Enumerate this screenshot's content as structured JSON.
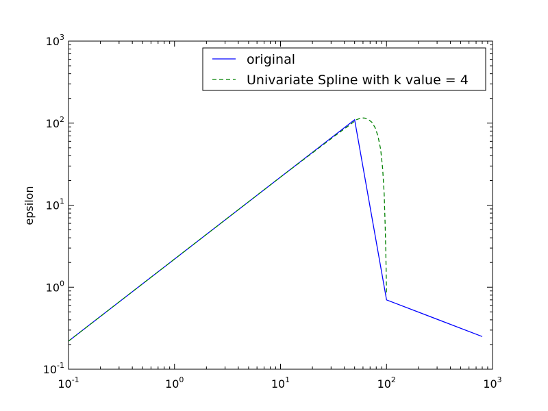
{
  "chart_data": {
    "type": "line",
    "title": "",
    "xlabel": "",
    "ylabel": "epsilon",
    "xscale": "log",
    "yscale": "log",
    "xlim": [
      0.1,
      1000
    ],
    "ylim": [
      0.1,
      1000
    ],
    "grid": false,
    "legend_position": "top-right",
    "x_ticks": [
      {
        "base": "10",
        "exp": "-1",
        "value": 0.1
      },
      {
        "base": "10",
        "exp": "0",
        "value": 1
      },
      {
        "base": "10",
        "exp": "1",
        "value": 10
      },
      {
        "base": "10",
        "exp": "2",
        "value": 100
      },
      {
        "base": "10",
        "exp": "3",
        "value": 1000
      }
    ],
    "y_ticks": [
      {
        "base": "10",
        "exp": "-1",
        "value": 0.1
      },
      {
        "base": "10",
        "exp": "0",
        "value": 1
      },
      {
        "base": "10",
        "exp": "1",
        "value": 10
      },
      {
        "base": "10",
        "exp": "2",
        "value": 100
      },
      {
        "base": "10",
        "exp": "3",
        "value": 1000
      }
    ],
    "series": [
      {
        "name": "original",
        "color": "#0000ff",
        "style": "solid",
        "x": [
          0.1,
          50,
          100,
          800
        ],
        "y": [
          0.22,
          110,
          0.7,
          0.25
        ]
      },
      {
        "name": "Univariate Spline with k value = 4",
        "color": "#008000",
        "style": "dashed",
        "x": [
          0.1,
          1,
          10,
          35,
          45,
          52,
          58,
          63,
          68,
          73,
          78,
          83,
          88,
          92,
          95,
          97,
          98.5,
          99.5,
          100
        ],
        "y": [
          0.22,
          2.2,
          22,
          75,
          95,
          110,
          116,
          115,
          110,
          102,
          88,
          70,
          48,
          28,
          14,
          6,
          2.8,
          1.3,
          0.8
        ]
      }
    ]
  }
}
